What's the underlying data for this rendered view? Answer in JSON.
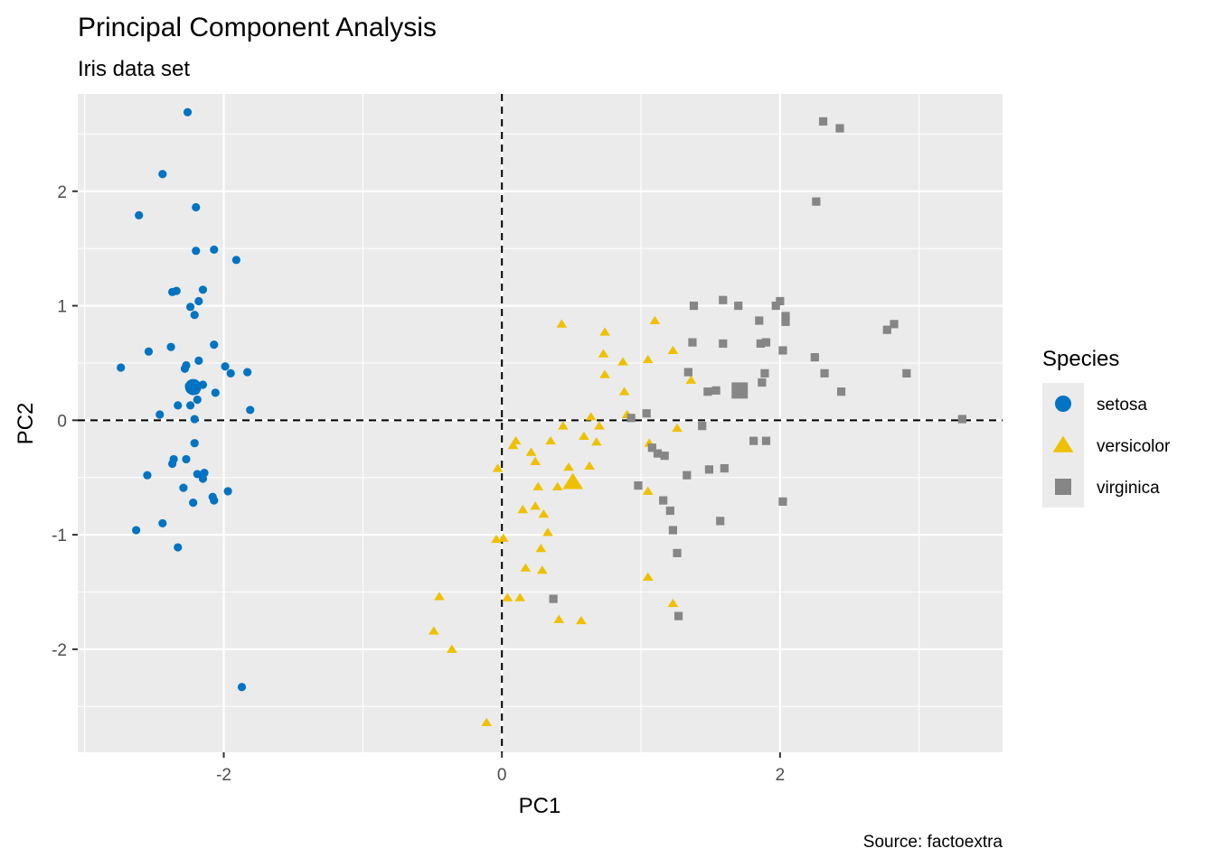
{
  "chart_data": {
    "type": "scatter",
    "title": "Principal Component Analysis",
    "subtitle": "Iris data set",
    "xlabel": "PC1",
    "ylabel": "PC2",
    "caption": "Source: factoextra",
    "xlim": [
      -3.05,
      3.6
    ],
    "ylim": [
      -2.9,
      2.85
    ],
    "x_ticks": [
      -2,
      0,
      2
    ],
    "x_tick_labels": [
      "-2",
      "0",
      "2"
    ],
    "y_ticks": [
      -2,
      -1,
      0,
      1,
      2
    ],
    "y_tick_labels": [
      "-2",
      "-1",
      "0",
      "1",
      "2"
    ],
    "grid": true,
    "reference_lines": {
      "x": 0,
      "y": 0,
      "style": "dashed"
    },
    "legend": {
      "title": "Species",
      "position": "right"
    },
    "colors": {
      "setosa": "#0073C2",
      "versicolor": "#EFC000",
      "virginica": "#868686",
      "panel": "#EBEBEB",
      "grid": "#FFFFFF"
    },
    "series": [
      {
        "name": "setosa",
        "shape": "circle",
        "centroid": [
          -2.22,
          0.29
        ],
        "points": [
          [
            -2.26,
            2.69
          ],
          [
            -2.44,
            2.15
          ],
          [
            -2.61,
            1.79
          ],
          [
            -2.2,
            1.86
          ],
          [
            -2.2,
            1.48
          ],
          [
            -2.07,
            1.49
          ],
          [
            -1.91,
            1.4
          ],
          [
            -2.37,
            1.12
          ],
          [
            -2.34,
            1.13
          ],
          [
            -2.15,
            1.14
          ],
          [
            -2.18,
            1.04
          ],
          [
            -2.24,
            0.99
          ],
          [
            -2.21,
            0.92
          ],
          [
            -2.38,
            0.64
          ],
          [
            -2.07,
            0.66
          ],
          [
            -2.54,
            0.6
          ],
          [
            -2.18,
            0.52
          ],
          [
            -2.27,
            0.48
          ],
          [
            -2.28,
            0.45
          ],
          [
            -1.99,
            0.47
          ],
          [
            -1.95,
            0.41
          ],
          [
            -1.83,
            0.42
          ],
          [
            -2.74,
            0.46
          ],
          [
            -2.22,
            0.29
          ],
          [
            -2.25,
            0.3
          ],
          [
            -2.2,
            0.26
          ],
          [
            -2.15,
            0.31
          ],
          [
            -2.06,
            0.24
          ],
          [
            -2.19,
            0.18
          ],
          [
            -2.33,
            0.13
          ],
          [
            -2.24,
            0.13
          ],
          [
            -1.81,
            0.09
          ],
          [
            -2.46,
            0.05
          ],
          [
            -2.21,
            0.01
          ],
          [
            -2.21,
            -0.2
          ],
          [
            -2.27,
            -0.34
          ],
          [
            -2.36,
            -0.34
          ],
          [
            -2.37,
            -0.38
          ],
          [
            -2.55,
            -0.48
          ],
          [
            -2.19,
            -0.47
          ],
          [
            -2.14,
            -0.46
          ],
          [
            -2.15,
            -0.51
          ],
          [
            -2.29,
            -0.59
          ],
          [
            -1.97,
            -0.62
          ],
          [
            -2.08,
            -0.67
          ],
          [
            -2.07,
            -0.7
          ],
          [
            -2.22,
            -0.72
          ],
          [
            -2.44,
            -0.9
          ],
          [
            -2.63,
            -0.96
          ],
          [
            -2.33,
            -1.11
          ],
          [
            -1.87,
            -2.33
          ]
        ]
      },
      {
        "name": "versicolor",
        "shape": "triangle",
        "centroid": [
          0.51,
          -0.54
        ],
        "points": [
          [
            0.43,
            0.84
          ],
          [
            1.1,
            0.87
          ],
          [
            0.74,
            0.77
          ],
          [
            0.73,
            0.58
          ],
          [
            1.23,
            0.61
          ],
          [
            0.87,
            0.51
          ],
          [
            1.05,
            0.53
          ],
          [
            0.74,
            0.4
          ],
          [
            1.36,
            0.35
          ],
          [
            0.88,
            0.25
          ],
          [
            0.9,
            0.05
          ],
          [
            0.64,
            0.03
          ],
          [
            0.59,
            -0.14
          ],
          [
            0.7,
            -0.05
          ],
          [
            0.68,
            -0.19
          ],
          [
            0.44,
            -0.05
          ],
          [
            0.35,
            -0.18
          ],
          [
            0.1,
            -0.18
          ],
          [
            0.08,
            -0.22
          ],
          [
            0.21,
            -0.28
          ],
          [
            1.06,
            -0.2
          ],
          [
            1.26,
            -0.07
          ],
          [
            0.24,
            -0.36
          ],
          [
            0.48,
            -0.41
          ],
          [
            0.63,
            -0.4
          ],
          [
            -0.03,
            -0.42
          ],
          [
            0.4,
            -0.58
          ],
          [
            0.51,
            -0.54
          ],
          [
            0.26,
            -0.58
          ],
          [
            1.05,
            -0.62
          ],
          [
            0.15,
            -0.78
          ],
          [
            0.24,
            -0.75
          ],
          [
            0.3,
            -0.82
          ],
          [
            0.33,
            -0.98
          ],
          [
            0.28,
            -1.12
          ],
          [
            -0.04,
            -1.04
          ],
          [
            0.01,
            -1.03
          ],
          [
            0.17,
            -1.29
          ],
          [
            0.29,
            -1.31
          ],
          [
            1.05,
            -1.37
          ],
          [
            0.04,
            -1.55
          ],
          [
            0.13,
            -1.55
          ],
          [
            1.23,
            -1.6
          ],
          [
            -0.45,
            -1.54
          ],
          [
            -0.49,
            -1.84
          ],
          [
            0.41,
            -1.74
          ],
          [
            0.57,
            -1.75
          ],
          [
            -0.36,
            -2.0
          ],
          [
            -0.11,
            -2.64
          ]
        ]
      },
      {
        "name": "virginica",
        "shape": "square",
        "centroid": [
          1.71,
          0.26
        ],
        "points": [
          [
            2.31,
            2.61
          ],
          [
            2.43,
            2.55
          ],
          [
            2.26,
            1.91
          ],
          [
            1.59,
            1.05
          ],
          [
            1.38,
            1.0
          ],
          [
            1.7,
            1.0
          ],
          [
            1.97,
            1.0
          ],
          [
            2.0,
            1.04
          ],
          [
            2.04,
            0.91
          ],
          [
            2.04,
            0.86
          ],
          [
            1.85,
            0.87
          ],
          [
            2.82,
            0.84
          ],
          [
            2.77,
            0.79
          ],
          [
            1.37,
            0.68
          ],
          [
            1.59,
            0.67
          ],
          [
            1.86,
            0.67
          ],
          [
            1.9,
            0.68
          ],
          [
            2.02,
            0.61
          ],
          [
            2.25,
            0.55
          ],
          [
            1.34,
            0.42
          ],
          [
            2.32,
            0.41
          ],
          [
            2.91,
            0.41
          ],
          [
            1.89,
            0.41
          ],
          [
            1.87,
            0.33
          ],
          [
            1.54,
            0.26
          ],
          [
            1.48,
            0.25
          ],
          [
            1.71,
            0.26
          ],
          [
            2.44,
            0.25
          ],
          [
            1.04,
            0.06
          ],
          [
            0.93,
            0.02
          ],
          [
            1.44,
            -0.05
          ],
          [
            3.31,
            0.01
          ],
          [
            1.08,
            -0.24
          ],
          [
            1.12,
            -0.29
          ],
          [
            1.17,
            -0.31
          ],
          [
            1.49,
            -0.43
          ],
          [
            1.6,
            -0.42
          ],
          [
            1.33,
            -0.48
          ],
          [
            1.9,
            -0.18
          ],
          [
            1.81,
            -0.18
          ],
          [
            0.98,
            -0.57
          ],
          [
            1.16,
            -0.7
          ],
          [
            1.21,
            -0.79
          ],
          [
            1.57,
            -0.88
          ],
          [
            1.23,
            -0.96
          ],
          [
            2.02,
            -0.71
          ],
          [
            1.26,
            -1.16
          ],
          [
            0.37,
            -1.56
          ],
          [
            1.27,
            -1.71
          ]
        ]
      }
    ]
  }
}
